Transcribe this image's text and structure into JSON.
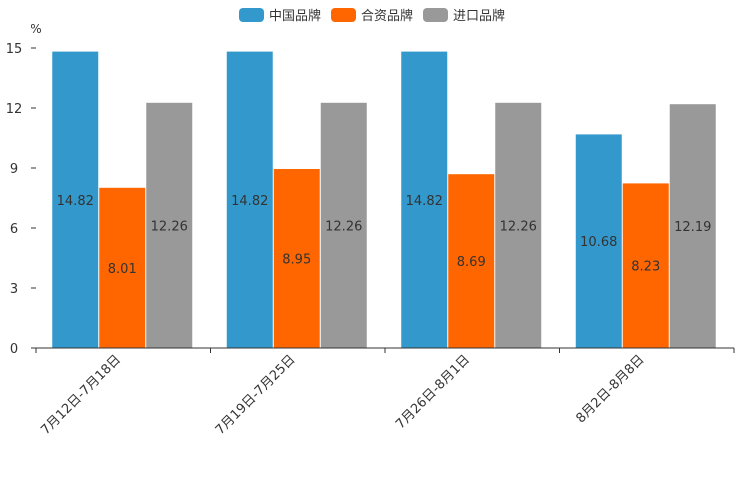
{
  "chart_data": {
    "type": "bar",
    "title": "",
    "xlabel": "",
    "ylabel": "%",
    "ylim": [
      0,
      15
    ],
    "yticks": [
      0,
      3,
      6,
      9,
      12,
      15
    ],
    "grid": false,
    "legend_position": "top-center",
    "categories": [
      "7月12日-7月18日",
      "7月19日-7月25日",
      "7月26日-8月1日",
      "8月2日-8月8日"
    ],
    "series": [
      {
        "name": "中国品牌",
        "color": "#3399cc",
        "values": [
          14.82,
          14.82,
          14.82,
          10.68
        ]
      },
      {
        "name": "合资品牌",
        "color": "#ff6600",
        "values": [
          8.01,
          8.95,
          8.69,
          8.23
        ]
      },
      {
        "name": "进口品牌",
        "color": "#999999",
        "values": [
          12.26,
          12.26,
          12.26,
          12.19
        ]
      }
    ],
    "value_labels": [
      [
        "14.82",
        "14.82",
        "14.82",
        "10.68"
      ],
      [
        "8.01",
        "8.95",
        "8.69",
        "8.23"
      ],
      [
        "12.26",
        "12.26",
        "12.26",
        "12.19"
      ]
    ]
  }
}
